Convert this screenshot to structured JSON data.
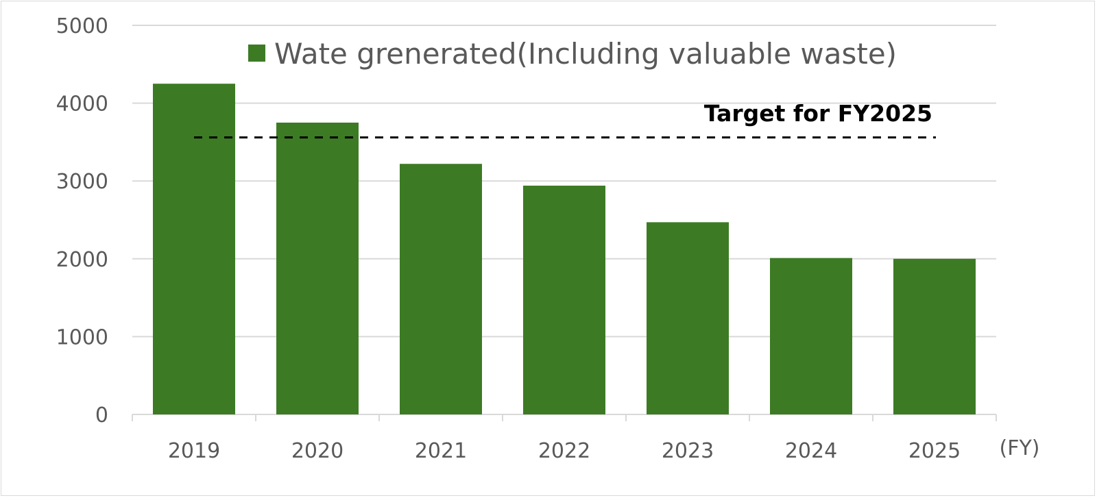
{
  "chart_data": {
    "type": "bar",
    "title": "",
    "xlabel": "(FY)",
    "ylabel": "",
    "categories": [
      "2019",
      "2020",
      "2021",
      "2022",
      "2023",
      "2024",
      "2025"
    ],
    "series": [
      {
        "name": "Wate grenerated(Including valuable waste)",
        "values": [
          4250,
          3750,
          3220,
          2940,
          2470,
          2010,
          2000
        ],
        "color": "#3c7b24"
      }
    ],
    "ylim": [
      0,
      5000
    ],
    "yticks": [
      "0",
      "1000",
      "2000",
      "3000",
      "4000",
      "5000"
    ],
    "grid": true,
    "legend_position": "top",
    "annotations": [
      {
        "text": "Target for FY2025",
        "value": 3560,
        "style": "dashed-line"
      }
    ]
  }
}
